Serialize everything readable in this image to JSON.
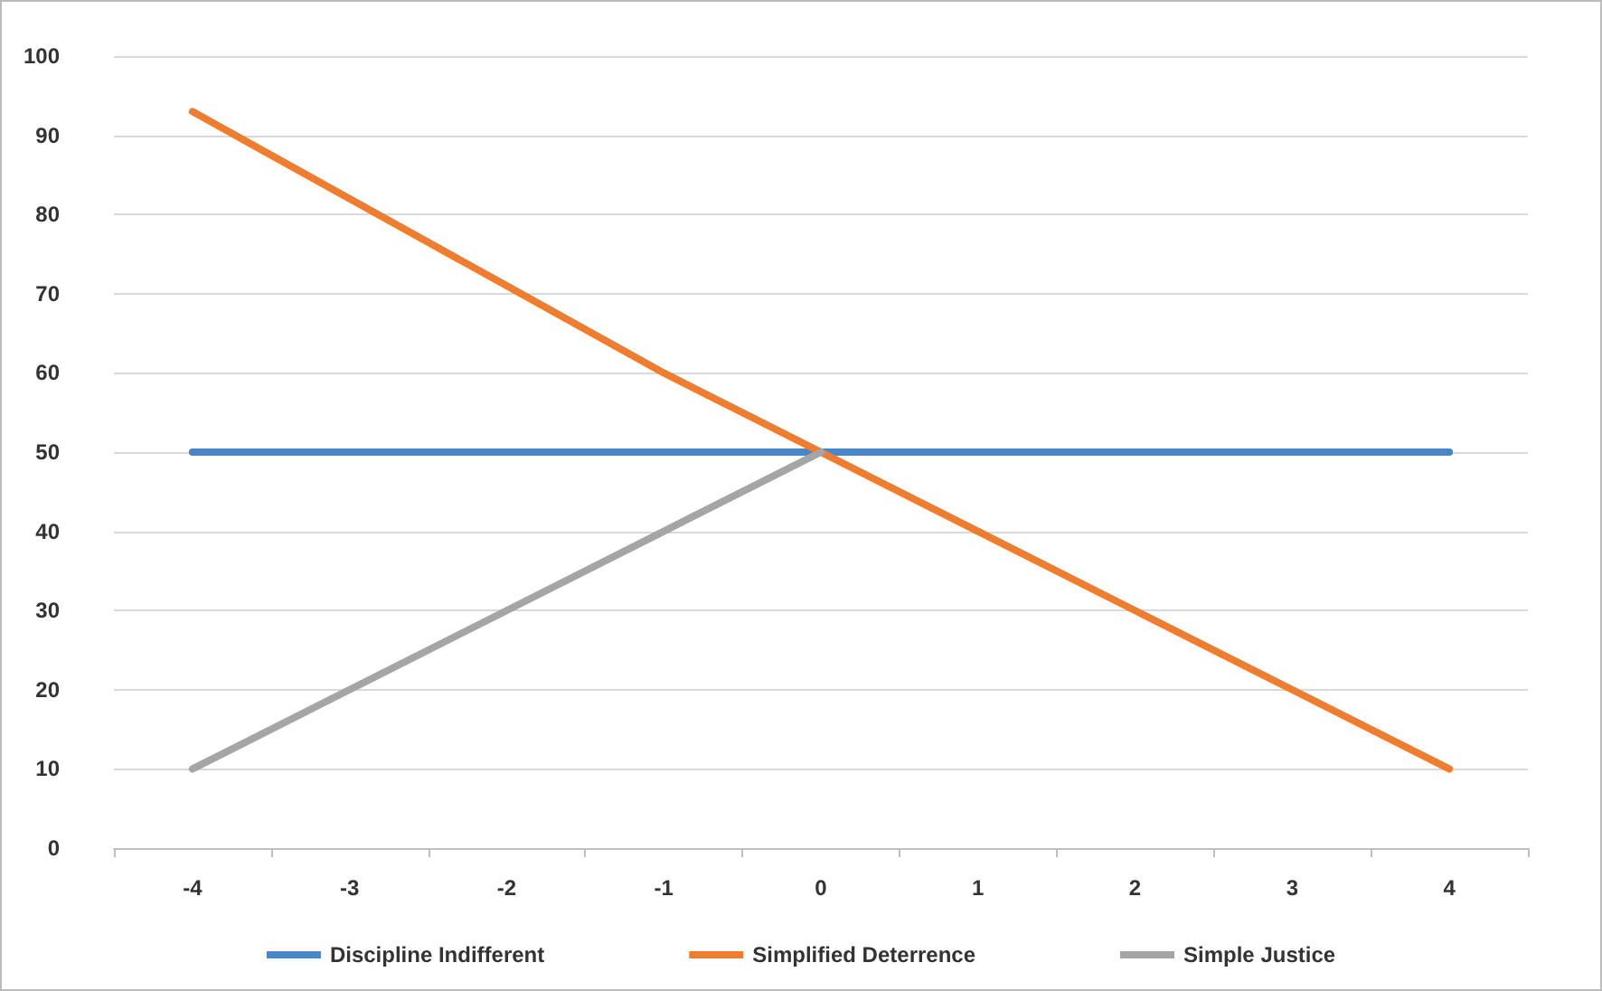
{
  "chart_data": {
    "type": "line",
    "categories": [
      "-4",
      "-3",
      "-2",
      "-1",
      "0",
      "1",
      "2",
      "3",
      "4"
    ],
    "series": [
      {
        "name": "Discipline Indifferent",
        "color": "#4a86c5",
        "values": [
          50,
          50,
          50,
          50,
          50,
          50,
          50,
          50,
          50
        ]
      },
      {
        "name": "Simplified Deterrence",
        "color": "#ed7d31",
        "values": [
          93,
          82,
          71,
          60,
          50,
          40,
          30,
          20,
          10
        ]
      },
      {
        "name": "Simple Justice",
        "color": "#a5a5a5",
        "values": [
          10,
          20,
          30,
          40,
          50,
          null,
          null,
          null,
          null
        ]
      }
    ],
    "ylim": [
      0,
      100
    ],
    "yticks": [
      0,
      10,
      20,
      30,
      40,
      50,
      60,
      70,
      80,
      90,
      100
    ],
    "grid": "y",
    "legend": "bottom",
    "marker": "none",
    "line_style": "solid"
  }
}
